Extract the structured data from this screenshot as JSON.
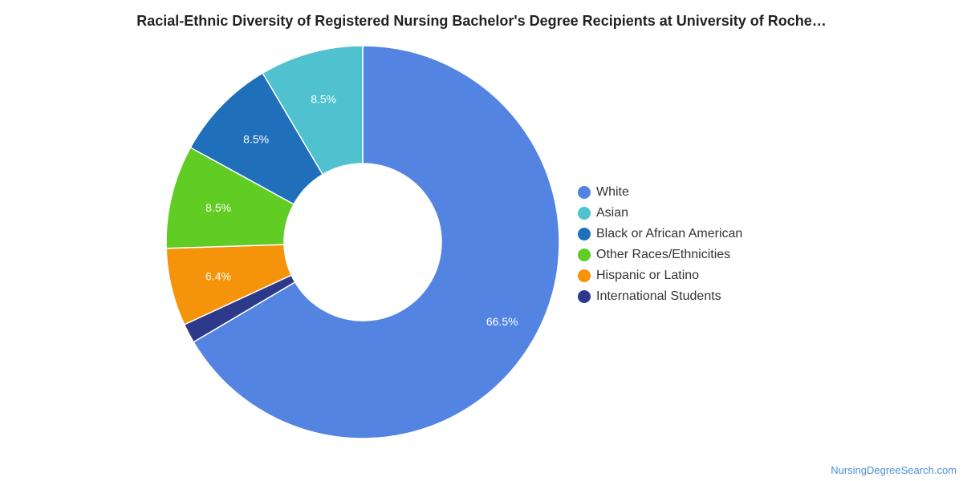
{
  "title": "Racial-Ethnic Diversity of Registered Nursing Bachelor's Degree Recipients at University of Roche…",
  "source": "NursingDegreeSearch.com",
  "chart_data": {
    "type": "pie",
    "style": "donut",
    "legend_position": "right",
    "series": [
      {
        "name": "White",
        "value": 66.5,
        "label": "66.5%",
        "color": "#5484e2"
      },
      {
        "name": "Asian",
        "value": 8.5,
        "label": "8.5%",
        "color": "#50c1cf"
      },
      {
        "name": "Black or African American",
        "value": 8.5,
        "label": "8.5%",
        "color": "#1f6fba"
      },
      {
        "name": "Other Races/Ethnicities",
        "value": 8.5,
        "label": "8.5%",
        "color": "#61cc24"
      },
      {
        "name": "Hispanic or Latino",
        "value": 6.4,
        "label": "6.4%",
        "color": "#f5930a"
      },
      {
        "name": "International Students",
        "value": 1.6,
        "label": "",
        "color": "#2d3a8c"
      }
    ]
  }
}
